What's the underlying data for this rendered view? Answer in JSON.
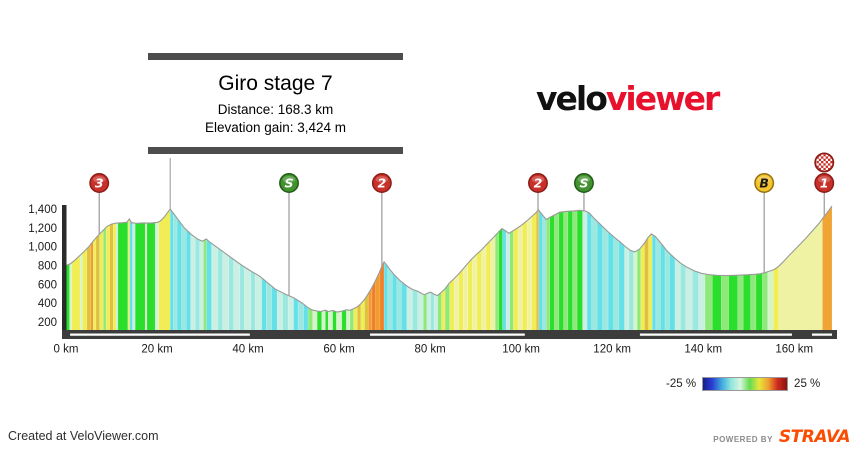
{
  "header": {
    "title": "Giro stage 7",
    "distance": "Distance: 168.3 km",
    "elevation_gain": "Elevation gain: 3,424 m"
  },
  "logo": {
    "part1": "velo",
    "part2": "viewer"
  },
  "legend": {
    "min_label": "-25 %",
    "max_label": "25 %",
    "gradient": [
      "#151e8c",
      "#2b3fd4",
      "#3fa8e0",
      "#8ee6dc",
      "#d8f5e0",
      "#64dc50",
      "#e6e63c",
      "#f0a030",
      "#cc2a1e",
      "#8c1410"
    ]
  },
  "footer": {
    "created_at": "Created at VeloViewer.com",
    "powered_by": "POWERED BY",
    "strava": "STRAVA"
  },
  "chart_data": {
    "type": "area",
    "title": "Giro stage 7",
    "distance_km": 168.3,
    "elevation_gain_m": 3424,
    "xlim": [
      0,
      168.3
    ],
    "x_ticks": [
      0,
      20,
      40,
      60,
      80,
      100,
      120,
      140,
      160
    ],
    "x_tick_labels": [
      "0 km",
      "20 km",
      "40 km",
      "60 km",
      "80 km",
      "100 km",
      "120 km",
      "140 km",
      "160 km"
    ],
    "y_ticks": [
      200,
      400,
      600,
      800,
      1000,
      1200,
      1400
    ],
    "y_tick_labels": [
      "200",
      "400",
      "600",
      "800",
      "1,000",
      "1,200",
      "1,400"
    ],
    "grid": false,
    "palette": {
      "G": "#2ade2c",
      "g": "#8ee87a",
      "pg": "#d5f5c9",
      "Y": "#f0ee54",
      "dy": "#e0c13e",
      "O": "#f09c2e",
      "dO": "#ef7f28",
      "C": "#64e0e8",
      "lc": "#9ae8e0",
      "pc": "#c9f0e2",
      "py": "#eff2a2",
      "or": "#f0a434"
    },
    "profile_points": [
      [
        0,
        800
      ],
      [
        1,
        820
      ],
      [
        2,
        860
      ],
      [
        3,
        905
      ],
      [
        4,
        950
      ],
      [
        5,
        1000
      ],
      [
        6,
        1060
      ],
      [
        7,
        1115
      ],
      [
        8,
        1165
      ],
      [
        9,
        1215
      ],
      [
        10,
        1240
      ],
      [
        11,
        1250
      ],
      [
        12.5,
        1255
      ],
      [
        13.4,
        1260
      ],
      [
        13.9,
        1295
      ],
      [
        14.4,
        1255
      ],
      [
        15.5,
        1248
      ],
      [
        17,
        1252
      ],
      [
        18.5,
        1250
      ],
      [
        20,
        1258
      ],
      [
        20.6,
        1268
      ],
      [
        21.5,
        1310
      ],
      [
        22.9,
        1400
      ],
      [
        23.6,
        1355
      ],
      [
        24.6,
        1290
      ],
      [
        26,
        1200
      ],
      [
        27.5,
        1130
      ],
      [
        29,
        1078
      ],
      [
        30,
        1058
      ],
      [
        30.8,
        1082
      ],
      [
        31.6,
        1048
      ],
      [
        33,
        1000
      ],
      [
        35,
        930
      ],
      [
        37,
        858
      ],
      [
        39,
        790
      ],
      [
        41,
        730
      ],
      [
        42.5,
        690
      ],
      [
        44,
        628
      ],
      [
        46,
        548
      ],
      [
        48,
        500
      ],
      [
        49,
        478
      ],
      [
        50,
        458
      ],
      [
        51,
        428
      ],
      [
        52,
        398
      ],
      [
        53,
        358
      ],
      [
        54,
        330
      ],
      [
        55,
        318
      ],
      [
        56,
        312
      ],
      [
        57,
        326
      ],
      [
        57.6,
        310
      ],
      [
        58.6,
        322
      ],
      [
        59.6,
        306
      ],
      [
        60.6,
        316
      ],
      [
        61.6,
        330
      ],
      [
        62.4,
        324
      ],
      [
        63.2,
        342
      ],
      [
        64,
        360
      ],
      [
        64.8,
        395
      ],
      [
        65.6,
        440
      ],
      [
        66.4,
        500
      ],
      [
        67.2,
        565
      ],
      [
        68,
        640
      ],
      [
        68.8,
        720
      ],
      [
        69.5,
        800
      ],
      [
        69.9,
        838
      ],
      [
        70.4,
        808
      ],
      [
        71.2,
        755
      ],
      [
        72.2,
        698
      ],
      [
        73.2,
        648
      ],
      [
        74.2,
        608
      ],
      [
        75.2,
        572
      ],
      [
        76.2,
        545
      ],
      [
        77.2,
        528
      ],
      [
        78,
        508
      ],
      [
        78.7,
        490
      ],
      [
        79.4,
        505
      ],
      [
        80.1,
        518
      ],
      [
        80.8,
        496
      ],
      [
        81.6,
        480
      ],
      [
        82.4,
        512
      ],
      [
        83.2,
        548
      ],
      [
        84.2,
        612
      ],
      [
        85.2,
        658
      ],
      [
        86.2,
        705
      ],
      [
        87.2,
        762
      ],
      [
        88.2,
        818
      ],
      [
        89.2,
        872
      ],
      [
        90.2,
        918
      ],
      [
        91.2,
        962
      ],
      [
        92.2,
        1012
      ],
      [
        93.2,
        1062
      ],
      [
        94.2,
        1112
      ],
      [
        95.2,
        1165
      ],
      [
        95.8,
        1192
      ],
      [
        96.6,
        1166
      ],
      [
        97.3,
        1142
      ],
      [
        98.2,
        1168
      ],
      [
        99.2,
        1198
      ],
      [
        100.2,
        1232
      ],
      [
        101.2,
        1272
      ],
      [
        102.2,
        1315
      ],
      [
        103.2,
        1358
      ],
      [
        103.8,
        1392
      ],
      [
        104.8,
        1330
      ],
      [
        105.5,
        1288
      ],
      [
        106.3,
        1312
      ],
      [
        107.5,
        1342
      ],
      [
        108.5,
        1366
      ],
      [
        110,
        1376
      ],
      [
        111.5,
        1380
      ],
      [
        113,
        1386
      ],
      [
        114.2,
        1378
      ],
      [
        115,
        1356
      ],
      [
        116,
        1302
      ],
      [
        117.5,
        1232
      ],
      [
        119,
        1162
      ],
      [
        120.5,
        1100
      ],
      [
        122,
        1040
      ],
      [
        123,
        996
      ],
      [
        124,
        960
      ],
      [
        125,
        944
      ],
      [
        126,
        974
      ],
      [
        127,
        1030
      ],
      [
        127.8,
        1092
      ],
      [
        128.6,
        1136
      ],
      [
        129.5,
        1108
      ],
      [
        130.5,
        1050
      ],
      [
        132,
        958
      ],
      [
        133.5,
        888
      ],
      [
        135,
        828
      ],
      [
        136.5,
        780
      ],
      [
        138,
        744
      ],
      [
        139.5,
        718
      ],
      [
        141,
        704
      ],
      [
        143,
        696
      ],
      [
        145,
        694
      ],
      [
        147,
        696
      ],
      [
        149,
        700
      ],
      [
        151,
        706
      ],
      [
        152.5,
        712
      ],
      [
        153.6,
        726
      ],
      [
        154.6,
        740
      ],
      [
        155.6,
        758
      ],
      [
        156.6,
        792
      ],
      [
        157.6,
        840
      ],
      [
        158.6,
        892
      ],
      [
        159.6,
        942
      ],
      [
        160.6,
        992
      ],
      [
        161.6,
        1042
      ],
      [
        162.6,
        1092
      ],
      [
        163.6,
        1146
      ],
      [
        164.6,
        1200
      ],
      [
        165.6,
        1256
      ],
      [
        166.4,
        1312
      ],
      [
        167.2,
        1360
      ],
      [
        167.8,
        1398
      ],
      [
        168.3,
        1432
      ]
    ],
    "gradient_segments": [
      [
        0,
        0.8,
        "G"
      ],
      [
        0.8,
        1.3,
        "pg"
      ],
      [
        1.3,
        3.1,
        "Y"
      ],
      [
        3.1,
        3.6,
        "pg"
      ],
      [
        3.6,
        4.6,
        "Y"
      ],
      [
        4.6,
        5.4,
        "dy"
      ],
      [
        5.4,
        6,
        "O"
      ],
      [
        6,
        6.6,
        "Y"
      ],
      [
        6.6,
        7.4,
        "dy"
      ],
      [
        7.4,
        8.2,
        "Y"
      ],
      [
        8.2,
        8.8,
        "g"
      ],
      [
        8.8,
        9.6,
        "Y"
      ],
      [
        9.6,
        10.4,
        "dy"
      ],
      [
        10.4,
        11,
        "Y"
      ],
      [
        11,
        11.4,
        "pc"
      ],
      [
        11.4,
        13.6,
        "G"
      ],
      [
        13.6,
        14,
        "Y"
      ],
      [
        14,
        14.6,
        "C"
      ],
      [
        14.6,
        15.2,
        "pc"
      ],
      [
        15.2,
        17.4,
        "G"
      ],
      [
        17.4,
        17.8,
        "pg"
      ],
      [
        17.8,
        19.6,
        "G"
      ],
      [
        19.6,
        20,
        "pc"
      ],
      [
        20,
        20.4,
        "pg"
      ],
      [
        20.4,
        22.9,
        "Y"
      ],
      [
        22.9,
        23.6,
        "C"
      ],
      [
        23.6,
        24.4,
        "lc"
      ],
      [
        24.4,
        25.4,
        "C"
      ],
      [
        25.4,
        26.4,
        "lc"
      ],
      [
        26.4,
        27.4,
        "C"
      ],
      [
        27.4,
        28.4,
        "pc"
      ],
      [
        28.4,
        29.4,
        "lc"
      ],
      [
        29.4,
        30.2,
        "pc"
      ],
      [
        30.2,
        30.9,
        "g"
      ],
      [
        30.9,
        32,
        "C"
      ],
      [
        32,
        33.4,
        "pc"
      ],
      [
        33.4,
        34.4,
        "lc"
      ],
      [
        34.4,
        35.8,
        "pc"
      ],
      [
        35.8,
        36.8,
        "lc"
      ],
      [
        36.8,
        38.2,
        "pc"
      ],
      [
        38.2,
        39.2,
        "lc"
      ],
      [
        39.2,
        40.6,
        "pc"
      ],
      [
        40.6,
        41.6,
        "lc"
      ],
      [
        41.6,
        43,
        "pc"
      ],
      [
        43,
        44,
        "C"
      ],
      [
        44,
        45.2,
        "lc"
      ],
      [
        45.2,
        46.4,
        "C"
      ],
      [
        46.4,
        47.6,
        "pc"
      ],
      [
        47.6,
        48.8,
        "lc"
      ],
      [
        48.8,
        50,
        "pc"
      ],
      [
        50,
        51,
        "C"
      ],
      [
        51,
        52.2,
        "lc"
      ],
      [
        52.2,
        53.2,
        "C"
      ],
      [
        53.2,
        54.2,
        "g"
      ],
      [
        54.2,
        55.2,
        "pg"
      ],
      [
        55.2,
        56.2,
        "G"
      ],
      [
        56.2,
        57,
        "pg"
      ],
      [
        57,
        57.6,
        "G"
      ],
      [
        57.6,
        58.6,
        "pg"
      ],
      [
        58.6,
        59.4,
        "G"
      ],
      [
        59.4,
        60.6,
        "pg"
      ],
      [
        60.6,
        61.6,
        "G"
      ],
      [
        61.6,
        62.4,
        "pg"
      ],
      [
        62.4,
        63.2,
        "g"
      ],
      [
        63.2,
        64,
        "Y"
      ],
      [
        64,
        64.8,
        "dy"
      ],
      [
        64.8,
        65.6,
        "Y"
      ],
      [
        65.6,
        66.4,
        "dy"
      ],
      [
        66.4,
        67.2,
        "O"
      ],
      [
        67.2,
        68,
        "dO"
      ],
      [
        68,
        69,
        "O"
      ],
      [
        69,
        69.9,
        "dO"
      ],
      [
        69.9,
        70.7,
        "C"
      ],
      [
        70.7,
        71.7,
        "lc"
      ],
      [
        71.7,
        72.7,
        "C"
      ],
      [
        72.7,
        73.7,
        "lc"
      ],
      [
        73.7,
        74.9,
        "C"
      ],
      [
        74.9,
        76.1,
        "pc"
      ],
      [
        76.1,
        77.3,
        "lc"
      ],
      [
        77.3,
        78.5,
        "pc"
      ],
      [
        78.5,
        79.3,
        "g"
      ],
      [
        79.3,
        80.1,
        "pc"
      ],
      [
        80.1,
        80.9,
        "lc"
      ],
      [
        80.9,
        81.7,
        "pc"
      ],
      [
        81.7,
        82.5,
        "g"
      ],
      [
        82.5,
        83.3,
        "Y"
      ],
      [
        83.3,
        84.3,
        "g"
      ],
      [
        84.3,
        85.3,
        "Y"
      ],
      [
        85.3,
        86.3,
        "py"
      ],
      [
        86.3,
        87.3,
        "Y"
      ],
      [
        87.3,
        88.3,
        "py"
      ],
      [
        88.3,
        89.3,
        "Y"
      ],
      [
        89.3,
        90.3,
        "py"
      ],
      [
        90.3,
        91.3,
        "Y"
      ],
      [
        91.3,
        92.3,
        "py"
      ],
      [
        92.3,
        93.3,
        "Y"
      ],
      [
        93.3,
        94.3,
        "py"
      ],
      [
        94.3,
        95.1,
        "g"
      ],
      [
        95.1,
        95.9,
        "G"
      ],
      [
        95.9,
        96.7,
        "C"
      ],
      [
        96.7,
        97.5,
        "pc"
      ],
      [
        97.5,
        98.3,
        "g"
      ],
      [
        98.3,
        99.3,
        "Y"
      ],
      [
        99.3,
        100.3,
        "py"
      ],
      [
        100.3,
        101.3,
        "Y"
      ],
      [
        101.3,
        102.3,
        "py"
      ],
      [
        102.3,
        103.3,
        "Y"
      ],
      [
        103.3,
        103.9,
        "dy"
      ],
      [
        103.9,
        104.7,
        "C"
      ],
      [
        104.7,
        105.5,
        "lc"
      ],
      [
        105.5,
        106.3,
        "g"
      ],
      [
        106.3,
        107.3,
        "G"
      ],
      [
        107.3,
        108.3,
        "g"
      ],
      [
        108.3,
        109.3,
        "G"
      ],
      [
        109.3,
        110.3,
        "g"
      ],
      [
        110.3,
        111.3,
        "G"
      ],
      [
        111.3,
        112.3,
        "g"
      ],
      [
        112.3,
        113.5,
        "G"
      ],
      [
        113.5,
        114.5,
        "pc"
      ],
      [
        114.5,
        115.5,
        "C"
      ],
      [
        115.5,
        116.7,
        "lc"
      ],
      [
        116.7,
        117.9,
        "C"
      ],
      [
        117.9,
        119.1,
        "lc"
      ],
      [
        119.1,
        120.3,
        "C"
      ],
      [
        120.3,
        121.5,
        "lc"
      ],
      [
        121.5,
        122.7,
        "C"
      ],
      [
        122.7,
        123.7,
        "pc"
      ],
      [
        123.7,
        124.7,
        "lc"
      ],
      [
        124.7,
        125.5,
        "pg"
      ],
      [
        125.5,
        126.3,
        "g"
      ],
      [
        126.3,
        127.1,
        "Y"
      ],
      [
        127.1,
        128,
        "dy"
      ],
      [
        128,
        128.8,
        "Y"
      ],
      [
        128.8,
        129.6,
        "C"
      ],
      [
        129.6,
        130.6,
        "lc"
      ],
      [
        130.6,
        131.6,
        "C"
      ],
      [
        131.6,
        132.6,
        "lc"
      ],
      [
        132.6,
        133.8,
        "C"
      ],
      [
        133.8,
        135,
        "pc"
      ],
      [
        135,
        136.2,
        "lc"
      ],
      [
        136.2,
        137.6,
        "pc"
      ],
      [
        137.6,
        139,
        "lc"
      ],
      [
        139,
        140.4,
        "pc"
      ],
      [
        140.4,
        142,
        "g"
      ],
      [
        142,
        144,
        "G"
      ],
      [
        144,
        145.6,
        "g"
      ],
      [
        145.6,
        147.6,
        "G"
      ],
      [
        147.6,
        148.8,
        "g"
      ],
      [
        148.8,
        150.4,
        "G"
      ],
      [
        150.4,
        151.6,
        "g"
      ],
      [
        151.6,
        153,
        "G"
      ],
      [
        153,
        154.2,
        "g"
      ],
      [
        154.2,
        155.4,
        "pg"
      ],
      [
        155.4,
        156.6,
        "Y"
      ],
      [
        156.6,
        166.2,
        "py"
      ],
      [
        166.2,
        168.3,
        "or"
      ]
    ],
    "markers": [
      {
        "km": 7.3,
        "label": "3",
        "kind": "category-3-climb",
        "bg": "#c8302a",
        "border": "#8a1d15",
        "fg": "#ffffff"
      },
      {
        "km": 49.0,
        "label": "S",
        "kind": "intermediate-sprint",
        "bg": "#42922f",
        "border": "#205c18",
        "fg": "#ffffff"
      },
      {
        "km": 69.4,
        "label": "2",
        "kind": "category-2-climb",
        "bg": "#c8302a",
        "border": "#8a1d15",
        "fg": "#ffffff"
      },
      {
        "km": 103.7,
        "label": "2",
        "kind": "category-2-climb",
        "bg": "#c8302a",
        "border": "#8a1d15",
        "fg": "#ffffff"
      },
      {
        "km": 113.8,
        "label": "S",
        "kind": "intermediate-sprint",
        "bg": "#42922f",
        "border": "#205c18",
        "fg": "#ffffff"
      },
      {
        "km": 153.4,
        "label": "B",
        "kind": "bonus-sprint",
        "bg": "#f4c42f",
        "border": "#94700f",
        "fg": "#1a1a1a"
      },
      {
        "km": 166.6,
        "label": "1",
        "kind": "category-1-climb-finish",
        "bg": "#c8302a",
        "border": "#8a1d15",
        "fg": "#ffffff",
        "flag": true
      }
    ],
    "plain_stems_km": [
      22.9
    ],
    "road_dashes_km": [
      [
        0.9,
        40.4
      ],
      [
        66.8,
        100.8
      ],
      [
        126.1,
        159.5
      ],
      [
        163.9,
        168.3
      ]
    ]
  }
}
